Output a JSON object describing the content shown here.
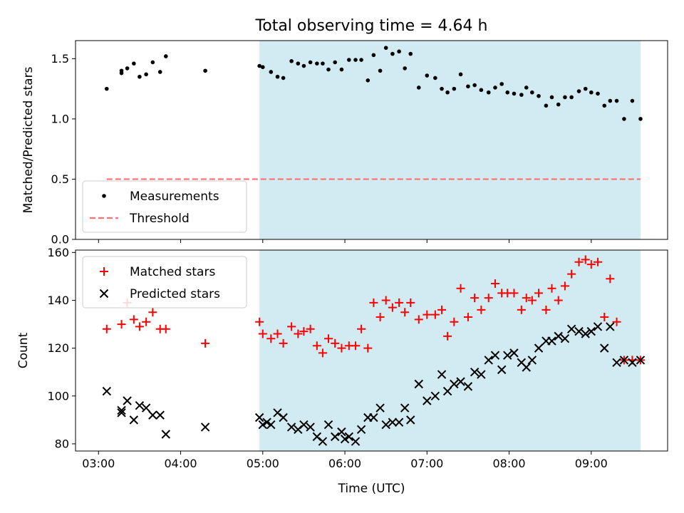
{
  "chart_data": {
    "title": "Total observing time = 4.64 h",
    "xlabel": "Time (UTC)",
    "x_tick_labels": [
      "03:00",
      "04:00",
      "05:00",
      "06:00",
      "07:00",
      "08:00",
      "09:00"
    ],
    "x_tick_hours": [
      3,
      4,
      5,
      6,
      7,
      8,
      9
    ],
    "xlim_hours": [
      2.72,
      9.93
    ],
    "shaded_span_hours": [
      4.96,
      9.6
    ],
    "shade_color": "#add8e6",
    "panels": [
      {
        "type": "scatter",
        "ylabel": "Matched/Predicted stars",
        "ylim": [
          0.0,
          1.65
        ],
        "y_ticks": [
          0.0,
          0.5,
          1.0,
          1.5
        ],
        "y_tick_labels": [
          "0.0",
          "0.5",
          "1.0",
          "1.5"
        ],
        "legend_position": "lower-left",
        "series": [
          {
            "name": "Measurements",
            "marker": "dot",
            "color": "#000000",
            "x": [
              3.1,
              3.28,
              3.28,
              3.35,
              3.43,
              3.5,
              3.58,
              3.66,
              3.75,
              3.82,
              4.3,
              4.96,
              5.0,
              5.1,
              5.18,
              5.25,
              5.35,
              5.43,
              5.5,
              5.58,
              5.66,
              5.73,
              5.8,
              5.88,
              5.96,
              6.05,
              6.13,
              6.2,
              6.28,
              6.35,
              6.43,
              6.5,
              6.58,
              6.66,
              6.73,
              6.8,
              6.9,
              7.0,
              7.1,
              7.18,
              7.25,
              7.33,
              7.41,
              7.5,
              7.58,
              7.66,
              7.75,
              7.83,
              7.91,
              7.98,
              8.06,
              8.15,
              8.21,
              8.28,
              8.36,
              8.45,
              8.52,
              8.6,
              8.68,
              8.76,
              8.85,
              8.93,
              9.0,
              9.08,
              9.16,
              9.23,
              9.31,
              9.4,
              9.5,
              9.6
            ],
            "y": [
              1.25,
              1.38,
              1.4,
              1.42,
              1.46,
              1.35,
              1.37,
              1.47,
              1.39,
              1.52,
              1.4,
              1.44,
              1.43,
              1.39,
              1.35,
              1.34,
              1.48,
              1.46,
              1.44,
              1.47,
              1.46,
              1.46,
              1.41,
              1.47,
              1.41,
              1.49,
              1.49,
              1.49,
              1.32,
              1.53,
              1.4,
              1.59,
              1.54,
              1.56,
              1.42,
              1.54,
              1.26,
              1.36,
              1.34,
              1.25,
              1.22,
              1.25,
              1.37,
              1.27,
              1.28,
              1.24,
              1.22,
              1.26,
              1.29,
              1.22,
              1.21,
              1.2,
              1.26,
              1.22,
              1.19,
              1.11,
              1.18,
              1.12,
              1.18,
              1.18,
              1.23,
              1.25,
              1.22,
              1.21,
              1.11,
              1.15,
              1.15,
              1.0,
              1.15,
              1.0
            ]
          },
          {
            "name": "Threshold",
            "marker": "dashed-line",
            "color": "#ff7070",
            "x": [
              3.1,
              9.6
            ],
            "y": [
              0.5,
              0.5
            ]
          }
        ]
      },
      {
        "type": "scatter",
        "ylabel": "Count",
        "ylim": [
          77,
          161
        ],
        "y_ticks": [
          80,
          100,
          120,
          140,
          160
        ],
        "y_tick_labels": [
          "80",
          "100",
          "120",
          "140",
          "160"
        ],
        "legend_position": "upper-left",
        "series": [
          {
            "name": "Matched stars",
            "marker": "plus",
            "color": "#ff0000",
            "x": [
              3.1,
              3.28,
              3.35,
              3.43,
              3.5,
              3.58,
              3.66,
              3.75,
              3.82,
              4.3,
              4.96,
              5.0,
              5.1,
              5.18,
              5.25,
              5.35,
              5.43,
              5.5,
              5.58,
              5.66,
              5.73,
              5.8,
              5.88,
              5.96,
              6.05,
              6.13,
              6.2,
              6.28,
              6.35,
              6.43,
              6.5,
              6.58,
              6.66,
              6.73,
              6.8,
              6.9,
              7.0,
              7.1,
              7.18,
              7.25,
              7.33,
              7.41,
              7.5,
              7.58,
              7.66,
              7.75,
              7.83,
              7.91,
              7.98,
              8.06,
              8.15,
              8.21,
              8.28,
              8.36,
              8.45,
              8.52,
              8.6,
              8.68,
              8.76,
              8.85,
              8.93,
              9.0,
              9.08,
              9.16,
              9.23,
              9.31,
              9.4,
              9.5,
              9.6
            ],
            "y": [
              128,
              130,
              139,
              132,
              129,
              131,
              135,
              128,
              128,
              122,
              131,
              126,
              124,
              126,
              122,
              129,
              126,
              127,
              128,
              121,
              118,
              124,
              122,
              120,
              121,
              121,
              128,
              120,
              139,
              133,
              140,
              137,
              139,
              135,
              139,
              132,
              134,
              134,
              136,
              125,
              131,
              145,
              133,
              141,
              136,
              141,
              147,
              143,
              143,
              143,
              136,
              141,
              140,
              143,
              136,
              145,
              140,
              146,
              151,
              156,
              157,
              155,
              156,
              133,
              149,
              131,
              115,
              115,
              115
            ]
          },
          {
            "name": "Predicted stars",
            "marker": "x",
            "color": "#000000",
            "x": [
              3.1,
              3.28,
              3.28,
              3.35,
              3.43,
              3.5,
              3.58,
              3.66,
              3.75,
              3.82,
              4.3,
              4.96,
              5.0,
              5.05,
              5.1,
              5.18,
              5.25,
              5.35,
              5.43,
              5.5,
              5.58,
              5.66,
              5.73,
              5.8,
              5.88,
              5.96,
              6.0,
              6.05,
              6.13,
              6.2,
              6.28,
              6.35,
              6.43,
              6.5,
              6.58,
              6.66,
              6.73,
              6.8,
              6.9,
              7.0,
              7.1,
              7.18,
              7.25,
              7.33,
              7.41,
              7.5,
              7.58,
              7.66,
              7.75,
              7.83,
              7.91,
              7.98,
              8.06,
              8.15,
              8.21,
              8.28,
              8.36,
              8.45,
              8.52,
              8.6,
              8.68,
              8.76,
              8.85,
              8.93,
              9.0,
              9.08,
              9.16,
              9.23,
              9.31,
              9.4,
              9.5,
              9.6
            ],
            "y": [
              102,
              94,
              93,
              98,
              90,
              96,
              95,
              92,
              92,
              84,
              87,
              91,
              88,
              89,
              88,
              93,
              91,
              87,
              86,
              88,
              87,
              83,
              81,
              88,
              83,
              85,
              82,
              83,
              81,
              86,
              91,
              91,
              95,
              88,
              89,
              89,
              95,
              90,
              105,
              98,
              100,
              109,
              102,
              105,
              106,
              104,
              110,
              109,
              115,
              117,
              111,
              117,
              118,
              114,
              112,
              115,
              120,
              123,
              123,
              125,
              124,
              128,
              127,
              126,
              127,
              129,
              120,
              129,
              114,
              115,
              114,
              115
            ]
          }
        ]
      }
    ]
  }
}
